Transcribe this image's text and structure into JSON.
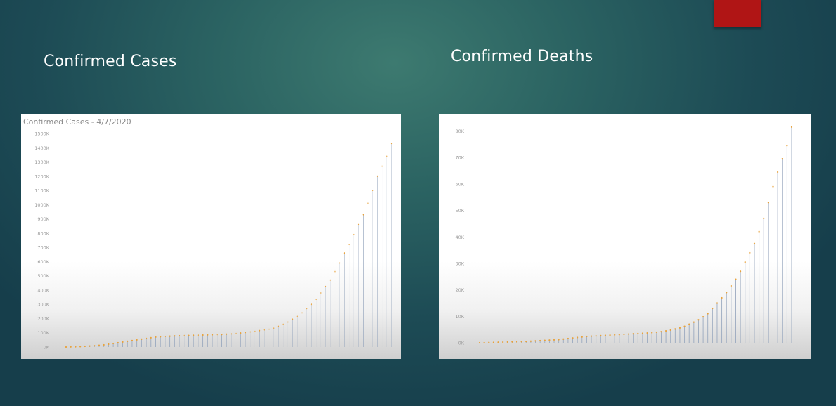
{
  "slide": {
    "title_cases": "Confirmed Cases",
    "title_deaths": "Confirmed Deaths",
    "accent_color": "#b01515"
  },
  "chart_data": [
    {
      "type": "lollipop",
      "title": "Confirmed Cases - 4/7/2020",
      "xlabel": "",
      "ylabel": "",
      "ylim": [
        0,
        1500000
      ],
      "yticks": [
        0,
        100000,
        200000,
        300000,
        400000,
        500000,
        600000,
        700000,
        800000,
        900000,
        1000000,
        1100000,
        1200000,
        1300000,
        1400000,
        1500000
      ],
      "ytick_labels": [
        "0K",
        "100K",
        "200K",
        "300K",
        "400K",
        "500K",
        "600K",
        "700K",
        "800K",
        "900K",
        "1000K",
        "1100K",
        "1200K",
        "1300K",
        "1400K",
        "1500K"
      ],
      "grid": false,
      "colors": {
        "stem": "#9aa9bf",
        "dot": "#e8a23c"
      },
      "values": [
        0,
        1000,
        2000,
        3000,
        5000,
        7000,
        9000,
        12000,
        15000,
        20000,
        25000,
        30000,
        35000,
        40000,
        45000,
        50000,
        55000,
        60000,
        65000,
        70000,
        72000,
        74000,
        76000,
        78000,
        79000,
        80000,
        81000,
        82000,
        83000,
        84000,
        85000,
        86000,
        87000,
        88000,
        90000,
        92000,
        95000,
        98000,
        102000,
        106000,
        110000,
        115000,
        120000,
        125000,
        132000,
        145000,
        160000,
        175000,
        195000,
        215000,
        240000,
        270000,
        300000,
        335000,
        380000,
        425000,
        470000,
        530000,
        590000,
        660000,
        720000,
        790000,
        860000,
        930000,
        1010000,
        1100000,
        1200000,
        1270000,
        1340000,
        1430000
      ]
    },
    {
      "type": "lollipop",
      "title": "",
      "xlabel": "",
      "ylabel": "",
      "ylim": [
        0,
        82000
      ],
      "yticks": [
        0,
        10000,
        20000,
        30000,
        40000,
        50000,
        60000,
        70000,
        80000
      ],
      "ytick_labels": [
        "0K",
        "10K",
        "20K",
        "30K",
        "40K",
        "50K",
        "60K",
        "70K",
        "80K"
      ],
      "grid": false,
      "colors": {
        "stem": "#9aa9bf",
        "dot": "#e8a23c"
      },
      "values": [
        0,
        50,
        100,
        150,
        200,
        250,
        300,
        350,
        400,
        450,
        500,
        600,
        700,
        800,
        900,
        1000,
        1100,
        1200,
        1400,
        1600,
        1800,
        2000,
        2200,
        2400,
        2500,
        2600,
        2700,
        2800,
        2900,
        3000,
        3100,
        3200,
        3300,
        3400,
        3500,
        3600,
        3700,
        3800,
        4000,
        4200,
        4500,
        4800,
        5200,
        5600,
        6200,
        7000,
        7800,
        8700,
        9800,
        11000,
        13000,
        15000,
        17000,
        19000,
        21500,
        24000,
        27000,
        30500,
        34000,
        37500,
        42000,
        47000,
        53000,
        59000,
        64500,
        69500,
        74500,
        81500
      ]
    }
  ]
}
